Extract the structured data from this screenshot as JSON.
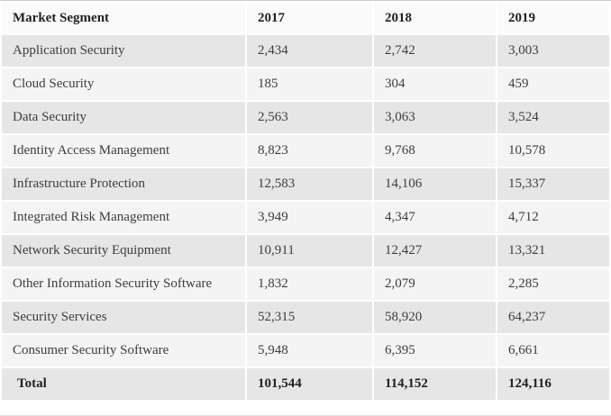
{
  "table": {
    "columns": [
      "Market Segment",
      "2017",
      "2018",
      "2019"
    ],
    "rows": [
      {
        "label": "Application Security",
        "values": [
          "2,434",
          "2,742",
          "3,003"
        ]
      },
      {
        "label": "Cloud Security",
        "values": [
          "185",
          "304",
          "459"
        ]
      },
      {
        "label": "Data Security",
        "values": [
          "2,563",
          "3,063",
          "3,524"
        ]
      },
      {
        "label": "Identity Access Management",
        "values": [
          "8,823",
          "9,768",
          "10,578"
        ]
      },
      {
        "label": "Infrastructure Protection",
        "values": [
          "12,583",
          "14,106",
          "15,337"
        ]
      },
      {
        "label": "Integrated Risk Management",
        "values": [
          "3,949",
          "4,347",
          "4,712"
        ]
      },
      {
        "label": "Network Security Equipment",
        "values": [
          "10,911",
          "12,427",
          "13,321"
        ]
      },
      {
        "label": "Other Information Security Software",
        "values": [
          "1,832",
          "2,079",
          "2,285"
        ]
      },
      {
        "label": "Security Services",
        "values": [
          "52,315",
          "58,920",
          "64,237"
        ]
      },
      {
        "label": "Consumer Security Software",
        "values": [
          "5,948",
          "6,395",
          "6,661"
        ]
      }
    ],
    "total_row": {
      "label": "Total",
      "values": [
        "101,544",
        "114,152",
        "124,116"
      ]
    }
  },
  "chart_data": {
    "type": "table",
    "title": "",
    "categories": [
      "2017",
      "2018",
      "2019"
    ],
    "row_header": "Market Segment",
    "series": [
      {
        "name": "Application Security",
        "values": [
          2434,
          2742,
          3003
        ]
      },
      {
        "name": "Cloud Security",
        "values": [
          185,
          304,
          459
        ]
      },
      {
        "name": "Data Security",
        "values": [
          2563,
          3063,
          3524
        ]
      },
      {
        "name": "Identity Access Management",
        "values": [
          8823,
          9768,
          10578
        ]
      },
      {
        "name": "Infrastructure Protection",
        "values": [
          12583,
          14106,
          15337
        ]
      },
      {
        "name": "Integrated Risk Management",
        "values": [
          3949,
          4347,
          4712
        ]
      },
      {
        "name": "Network Security Equipment",
        "values": [
          10911,
          12427,
          13321
        ]
      },
      {
        "name": "Other Information Security Software",
        "values": [
          1832,
          2079,
          2285
        ]
      },
      {
        "name": "Security Services",
        "values": [
          52315,
          58920,
          64237
        ]
      },
      {
        "name": "Consumer Security Software",
        "values": [
          5948,
          6395,
          6661
        ]
      },
      {
        "name": "Total",
        "values": [
          101544,
          114152,
          124116
        ]
      }
    ],
    "legend_position": "none",
    "grid": false
  },
  "colors": {
    "header_bg": "#fafafa",
    "row_dark": "#e6e6e6",
    "row_light": "#f4f4f4",
    "gap": "#ffffff",
    "text": "#3d3d3d",
    "text_bold": "#222222",
    "top_border": "#cccccc"
  }
}
